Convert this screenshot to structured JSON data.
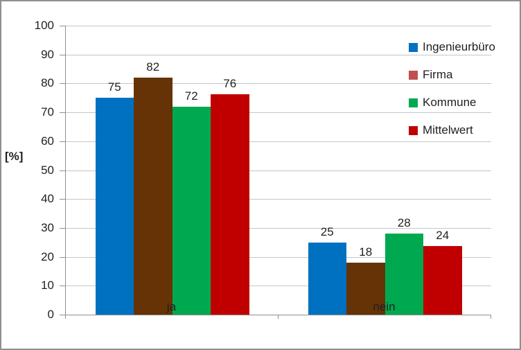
{
  "chart_data": {
    "type": "bar",
    "title": "",
    "ylabel": "[%]",
    "categories": [
      "ja",
      "nein"
    ],
    "ylim": [
      0,
      100
    ],
    "yticks": [
      0,
      10,
      20,
      30,
      40,
      50,
      60,
      70,
      80,
      90,
      100
    ],
    "grid": "horizontal",
    "legend_position": "right",
    "data_labels_shown": true,
    "series": [
      {
        "name": "Ingenieurbüro",
        "bar_color": "#0071C1",
        "legend_color": "#0071C1",
        "values": [
          75,
          25
        ],
        "labels": [
          "75",
          "25"
        ]
      },
      {
        "name": "Firma",
        "bar_color": "#663306",
        "legend_color": "#C0504D",
        "values": [
          82,
          18
        ],
        "labels": [
          "82",
          "18"
        ]
      },
      {
        "name": "Kommune",
        "bar_color": "#00A94F",
        "legend_color": "#00A94F",
        "values": [
          72,
          28
        ],
        "labels": [
          "72",
          "28"
        ]
      },
      {
        "name": "Mittelwert",
        "bar_color": "#C00000",
        "legend_color": "#C00000",
        "values": [
          76.3,
          23.7
        ],
        "labels": [
          "76",
          "24"
        ]
      }
    ]
  }
}
